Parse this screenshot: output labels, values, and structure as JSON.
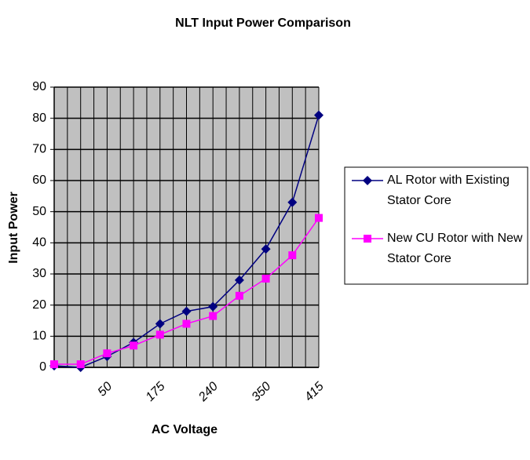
{
  "chart_data": {
    "type": "line",
    "title": "NLT Input Power Comparison",
    "x_label": "AC Voltage",
    "y_label": "Input Power",
    "categories": [
      null,
      null,
      "50",
      null,
      "175",
      null,
      "240",
      null,
      "350",
      null,
      "415"
    ],
    "series": [
      {
        "name": "AL Rotor with Existing Stator Core",
        "color": "#000080",
        "marker": "diamond",
        "values": [
          0.5,
          0,
          3.5,
          8,
          14,
          18,
          19.5,
          28,
          38,
          53,
          81
        ]
      },
      {
        "name": "New CU Rotor with New Stator Core",
        "color": "#ff00ff",
        "marker": "square",
        "values": [
          1,
          1,
          4.5,
          7,
          10.5,
          14,
          16.5,
          23,
          28.5,
          36,
          48
        ]
      }
    ],
    "ylim": [
      0,
      90
    ],
    "yticks": [
      0,
      10,
      20,
      30,
      40,
      50,
      60,
      70,
      80,
      90
    ],
    "grid": true,
    "legend": "right"
  }
}
